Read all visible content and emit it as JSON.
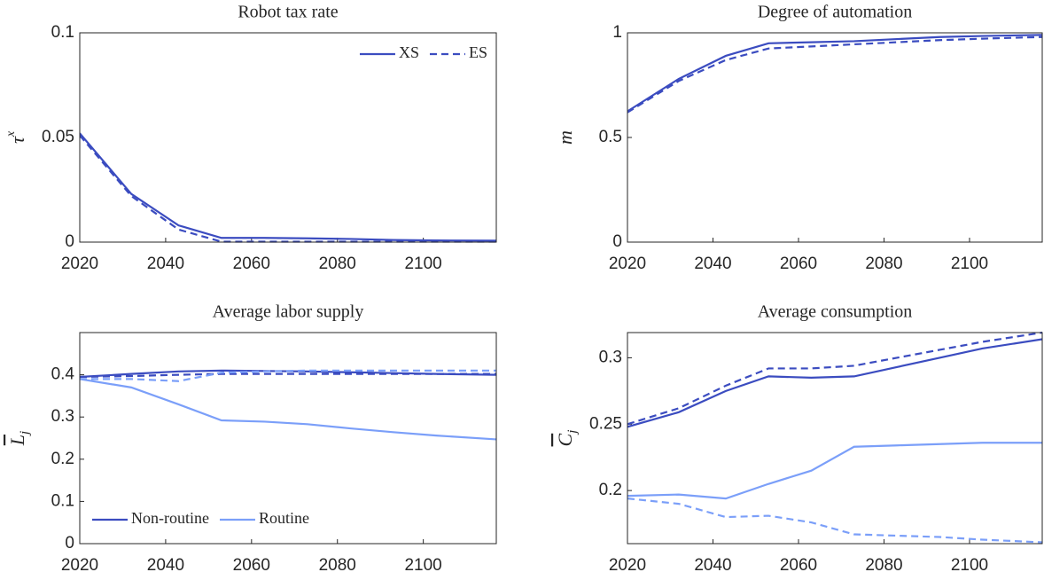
{
  "chart_data": [
    {
      "type": "line",
      "title": "Robot tax rate",
      "ylabel": {
        "base": "τ",
        "sup": "x"
      },
      "x": [
        2020,
        2032,
        2043,
        2053,
        2063,
        2073,
        2083,
        2093,
        2103,
        2117
      ],
      "xlim": [
        2020,
        2117
      ],
      "xticks": [
        2020,
        2040,
        2060,
        2080,
        2100
      ],
      "ylim": [
        0,
        0.1
      ],
      "yticks": [
        0,
        0.05,
        0.1
      ],
      "legend": "upper right",
      "series": [
        {
          "name": "XS",
          "color": "#3b4cc0",
          "dashed": false,
          "values": [
            0.052,
            0.023,
            0.008,
            0.002,
            0.002,
            0.0018,
            0.0015,
            0.001,
            0.0008,
            0.0007
          ]
        },
        {
          "name": "ES",
          "color": "#3b4cc0",
          "dashed": true,
          "values": [
            0.051,
            0.022,
            0.006,
            0.0002,
            0.0002,
            0.0002,
            0.0002,
            0.0002,
            0.0002,
            0.0002
          ]
        }
      ]
    },
    {
      "type": "line",
      "title": "Degree of automation",
      "ylabel": {
        "base": "m"
      },
      "x": [
        2020,
        2032,
        2043,
        2053,
        2063,
        2073,
        2083,
        2093,
        2103,
        2117
      ],
      "xlim": [
        2020,
        2117
      ],
      "xticks": [
        2020,
        2040,
        2060,
        2080,
        2100
      ],
      "ylim": [
        0,
        1
      ],
      "yticks": [
        0,
        0.5,
        1
      ],
      "series": [
        {
          "color": "#3b4cc0",
          "dashed": false,
          "values": [
            0.625,
            0.78,
            0.89,
            0.95,
            0.955,
            0.96,
            0.97,
            0.98,
            0.985,
            0.99
          ]
        },
        {
          "color": "#3b4cc0",
          "dashed": true,
          "values": [
            0.62,
            0.77,
            0.87,
            0.925,
            0.935,
            0.945,
            0.955,
            0.965,
            0.972,
            0.98
          ]
        }
      ]
    },
    {
      "type": "line",
      "title": "Average labor supply",
      "ylabel": {
        "base": "L",
        "sub": "j",
        "overline": true
      },
      "x": [
        2020,
        2032,
        2043,
        2053,
        2063,
        2073,
        2083,
        2093,
        2103,
        2117
      ],
      "xlim": [
        2020,
        2117
      ],
      "xticks": [
        2020,
        2040,
        2060,
        2080,
        2100
      ],
      "ylim": [
        0,
        0.5
      ],
      "yticks": [
        0,
        0.1,
        0.2,
        0.3,
        0.4
      ],
      "legend": "lower left",
      "series": [
        {
          "name": "Non-routine",
          "color": "#3b4cc0",
          "dashed": false,
          "values": [
            0.395,
            0.402,
            0.408,
            0.41,
            0.409,
            0.408,
            0.406,
            0.404,
            0.402,
            0.4
          ]
        },
        {
          "color": "#3b4cc0",
          "dashed": true,
          "values": [
            0.395,
            0.397,
            0.4,
            0.402,
            0.402,
            0.402,
            0.402,
            0.402,
            0.402,
            0.402
          ]
        },
        {
          "name": "Routine",
          "color": "#7b9ff9",
          "dashed": false,
          "values": [
            0.39,
            0.37,
            0.33,
            0.292,
            0.289,
            0.283,
            0.273,
            0.264,
            0.256,
            0.247
          ]
        },
        {
          "color": "#7b9ff9",
          "dashed": true,
          "values": [
            0.39,
            0.39,
            0.385,
            0.405,
            0.408,
            0.41,
            0.41,
            0.41,
            0.41,
            0.41
          ]
        }
      ]
    },
    {
      "type": "line",
      "title": "Average consumption",
      "ylabel": {
        "base": "C",
        "sub": "j",
        "overline": true
      },
      "x": [
        2020,
        2032,
        2043,
        2053,
        2063,
        2073,
        2083,
        2093,
        2103,
        2117
      ],
      "xlim": [
        2020,
        2117
      ],
      "xticks": [
        2020,
        2040,
        2060,
        2080,
        2100
      ],
      "ylim": [
        0.16,
        0.319
      ],
      "yticks": [
        0.2,
        0.25,
        0.3
      ],
      "series": [
        {
          "color": "#3b4cc0",
          "dashed": false,
          "values": [
            0.248,
            0.259,
            0.275,
            0.286,
            0.285,
            0.286,
            0.293,
            0.3,
            0.307,
            0.314
          ]
        },
        {
          "color": "#3b4cc0",
          "dashed": true,
          "values": [
            0.25,
            0.262,
            0.279,
            0.292,
            0.292,
            0.294,
            0.3,
            0.306,
            0.312,
            0.319
          ]
        },
        {
          "color": "#7b9ff9",
          "dashed": false,
          "values": [
            0.196,
            0.197,
            0.194,
            0.205,
            0.215,
            0.233,
            0.234,
            0.235,
            0.236,
            0.236
          ]
        },
        {
          "color": "#7b9ff9",
          "dashed": true,
          "values": [
            0.194,
            0.19,
            0.18,
            0.181,
            0.176,
            0.167,
            0.166,
            0.165,
            0.163,
            0.161
          ]
        }
      ]
    }
  ]
}
